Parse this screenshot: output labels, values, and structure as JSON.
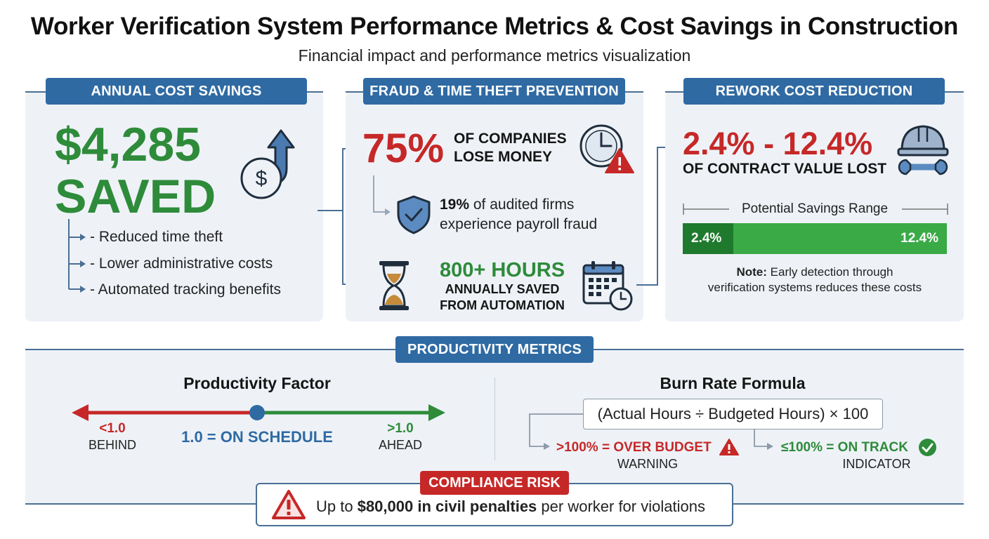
{
  "title": "Worker Verification System Performance Metrics & Cost Savings in Construction",
  "subtitle": "Financial impact and performance metrics visualization",
  "annual": {
    "label": "ANNUAL COST SAVINGS",
    "amount": "$4,285",
    "saved": "SAVED",
    "items": [
      "- Reduced time theft",
      "- Lower administrative costs",
      "- Automated tracking benefits"
    ]
  },
  "fraud": {
    "label": "FRAUD & TIME THEFT PREVENTION",
    "pct": "75%",
    "pct_line1": "OF COMPANIES",
    "pct_line2": "LOSE MONEY",
    "audit_bold": "19%",
    "audit_rest": " of audited firms",
    "audit_line2": "experience payroll fraud",
    "hours": "800+ HOURS",
    "hours_line1": "ANNUALLY SAVED",
    "hours_line2": "FROM AUTOMATION"
  },
  "rework": {
    "label": "REWORK COST REDUCTION",
    "range": "2.4% - 12.4%",
    "range_sub": "OF CONTRACT VALUE LOST",
    "savings_label": "Potential Savings Range",
    "bar_low": "2.4%",
    "bar_high": "12.4%",
    "note_bold": "Note:",
    "note_line1": " Early detection through",
    "note_line2": "verification systems reduces these costs"
  },
  "productivity": {
    "label": "PRODUCTIVITY METRICS",
    "factor_title": "Productivity Factor",
    "behind_value": "<1.0",
    "behind_label": "BEHIND",
    "on_schedule": "1.0 = ON SCHEDULE",
    "ahead_value": ">1.0",
    "ahead_label": "AHEAD",
    "burn_title": "Burn Rate Formula",
    "formula": "(Actual Hours ÷ Budgeted Hours) × 100",
    "over": ">100% = OVER BUDGET",
    "over_sub": "WARNING",
    "ontrack": "≤100% = ON TRACK",
    "ontrack_sub": "INDICATOR"
  },
  "compliance": {
    "label": "COMPLIANCE RISK",
    "pre": "Up to ",
    "bold": "$80,000 in civil penalties",
    "post": " per worker for violations"
  },
  "colors": {
    "accent_blue": "#2f6aa3",
    "green": "#2e8b3a",
    "red": "#c62828",
    "panel_bg": "#eef2f7"
  }
}
